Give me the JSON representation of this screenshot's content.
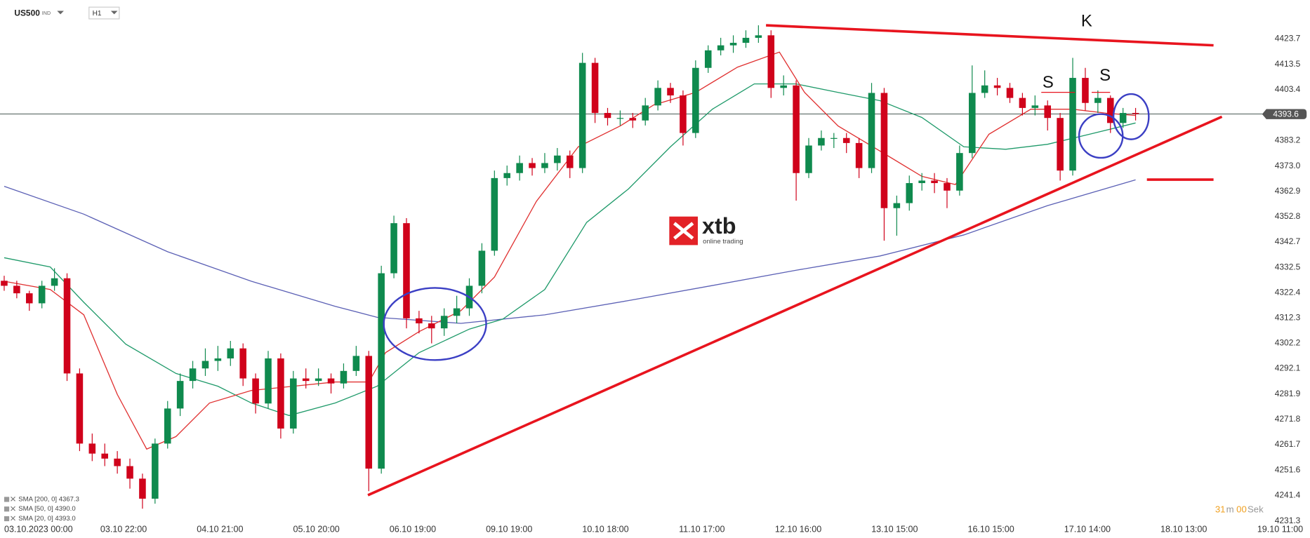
{
  "header": {
    "symbol": "US500",
    "market": "IND",
    "timeframe": "H1"
  },
  "logo": {
    "brand": "xtb",
    "tagline": "online trading"
  },
  "timer": {
    "minutes": "31",
    "minutes_unit": "m",
    "seconds": "00",
    "seconds_unit": "Sek"
  },
  "chart_data": {
    "type": "candlestick",
    "x": [
      0,
      3,
      6,
      9,
      12,
      15,
      18,
      21,
      24,
      27,
      30,
      33,
      36,
      39,
      42,
      45,
      48,
      51,
      54,
      57,
      60,
      63,
      66,
      69,
      72,
      75,
      78,
      81,
      84,
      87,
      90,
      93,
      96,
      99,
      102,
      105,
      108,
      111,
      114,
      117,
      120,
      123,
      126,
      129,
      132,
      135,
      138,
      141,
      144,
      147,
      150,
      153,
      156,
      159,
      162,
      165,
      168,
      171,
      174,
      177,
      180,
      183,
      186,
      189,
      192,
      195,
      198,
      201,
      204,
      207,
      210,
      213,
      216,
      219,
      222,
      225,
      228,
      231,
      234,
      237,
      240,
      243,
      246,
      249,
      252,
      255,
      258,
      261,
      264,
      267,
      270
    ],
    "open": [
      4327,
      4325,
      4322,
      4318,
      4325,
      4328,
      4290,
      4262,
      4258,
      4256,
      4253,
      4248,
      4240,
      4262,
      4276,
      4287,
      4292,
      4295,
      4296,
      4300,
      4288,
      4278,
      4296,
      4268,
      4288,
      4287,
      4288,
      4286,
      4291,
      4297,
      4252,
      4330,
      4350,
      4312,
      4310,
      4308,
      4313,
      4316,
      4325,
      4339,
      4368,
      4370,
      4374,
      4372,
      4374,
      4377,
      4372,
      4414,
      4394,
      4392,
      4392,
      4391,
      4397,
      4404,
      4401,
      4386,
      4412,
      4419,
      4421,
      4422,
      4424,
      4425,
      4404,
      4405,
      4370,
      4381,
      4384,
      4384,
      4382,
      4372,
      4402,
      4356,
      4358,
      4366,
      4367,
      4366,
      4363,
      4378,
      4402,
      4405,
      4404,
      4400,
      4396,
      4397,
      4392,
      4371,
      4408,
      4398,
      4400,
      4390,
      4394
    ],
    "high": [
      4329,
      4327,
      4323,
      4327,
      4332,
      4330,
      4292,
      4266,
      4262,
      4259,
      4256,
      4250,
      4264,
      4279,
      4290,
      4295,
      4300,
      4301,
      4303,
      4302,
      4290,
      4299,
      4298,
      4291,
      4292,
      4292,
      4290,
      4294,
      4301,
      4299,
      4333,
      4353,
      4352,
      4315,
      4313,
      4316,
      4321,
      4328,
      4342,
      4371,
      4373,
      4377,
      4376,
      4378,
      4380,
      4379,
      4418,
      4416,
      4396,
      4395,
      4394,
      4400,
      4407,
      4406,
      4403,
      4415,
      4421,
      4424,
      4425,
      4427,
      4429,
      4427,
      4409,
      4407,
      4384,
      4387,
      4386,
      4386,
      4384,
      4406,
      4404,
      4361,
      4369,
      4370,
      4370,
      4368,
      4381,
      4413,
      4411,
      4408,
      4406,
      4402,
      4401,
      4399,
      4394,
      4416,
      4412,
      4403,
      4401,
      4396,
      4396
    ],
    "low": [
      4323,
      4320,
      4315,
      4316,
      4323,
      4287,
      4259,
      4255,
      4253,
      4250,
      4244,
      4236,
      4238,
      4260,
      4273,
      4284,
      4289,
      4291,
      4293,
      4285,
      4274,
      4276,
      4264,
      4266,
      4284,
      4285,
      4282,
      4284,
      4289,
      4243,
      4250,
      4328,
      4308,
      4306,
      4302,
      4305,
      4310,
      4313,
      4322,
      4337,
      4365,
      4367,
      4369,
      4370,
      4371,
      4368,
      4370,
      4390,
      4389,
      4389,
      4388,
      4389,
      4395,
      4398,
      4381,
      4384,
      4410,
      4417,
      4418,
      4420,
      4422,
      4400,
      4401,
      4359,
      4368,
      4379,
      4380,
      4378,
      4368,
      4370,
      4343,
      4345,
      4355,
      4363,
      4362,
      4356,
      4361,
      4376,
      4400,
      4401,
      4398,
      4393,
      4393,
      4387,
      4367,
      4369,
      4395,
      4394,
      4386,
      4388,
      4391
    ],
    "close": [
      4325,
      4322,
      4318,
      4325,
      4328,
      4290,
      4262,
      4258,
      4256,
      4253,
      4248,
      4240,
      4262,
      4276,
      4287,
      4292,
      4295,
      4296,
      4300,
      4288,
      4278,
      4296,
      4268,
      4288,
      4287,
      4288,
      4286,
      4291,
      4297,
      4252,
      4330,
      4350,
      4312,
      4310,
      4308,
      4313,
      4316,
      4325,
      4339,
      4368,
      4370,
      4374,
      4372,
      4374,
      4377,
      4372,
      4414,
      4394,
      4392,
      4392,
      4391,
      4397,
      4404,
      4401,
      4386,
      4412,
      4419,
      4421,
      4422,
      4424,
      4425,
      4404,
      4405,
      4370,
      4381,
      4384,
      4384,
      4382,
      4372,
      4402,
      4356,
      4358,
      4366,
      4367,
      4366,
      4363,
      4378,
      4402,
      4405,
      4404,
      4400,
      4396,
      4397,
      4392,
      4371,
      4408,
      4398,
      4400,
      4390,
      4394,
      4393.6
    ],
    "up_color": "#0f8a4e",
    "down_color": "#d0021b",
    "series": [
      {
        "name": "SMA [200, 0] 4367.3",
        "color": "#5b60b5",
        "x": [
          0,
          19,
          39,
          59,
          79,
          89,
          109,
          129,
          149,
          169,
          189,
          209,
          229,
          249,
          270
        ],
        "values": [
          4364.7,
          4353.6,
          4338.6,
          4326.8,
          4316.8,
          4312.4,
          4310,
          4313.4,
          4319.1,
          4325.1,
          4331.2,
          4336.9,
          4345.3,
          4357,
          4367.3
        ]
      },
      {
        "name": "SMA [50, 0] 4390.0",
        "color": "#1f9a6a",
        "x": [
          0,
          11,
          19,
          29,
          41,
          51,
          59,
          68,
          79,
          89,
          99,
          111,
          119,
          129,
          139,
          149,
          159,
          169,
          179,
          189,
          199,
          209,
          219,
          229,
          239,
          249,
          259,
          270
        ],
        "values": [
          4336.2,
          4332.5,
          4318.4,
          4301.7,
          4290,
          4284.9,
          4278.2,
          4273.2,
          4278.2,
          4284.9,
          4298.3,
          4307.7,
          4311.7,
          4323.5,
          4350.3,
          4363.7,
          4380.5,
          4395.5,
          4405.6,
          4405.6,
          4402.2,
          4398.9,
          4392.2,
          4380.5,
          4379.5,
          4381.5,
          4385.5,
          4390
        ]
      },
      {
        "name": "SMA [20, 0] 4393.0",
        "color": "#e03030",
        "x": [
          0,
          11,
          19,
          27,
          34,
          41,
          49,
          59,
          69,
          79,
          87,
          91,
          99,
          109,
          117,
          127,
          137,
          147,
          155,
          165,
          175,
          185,
          191,
          199,
          209,
          219,
          227,
          235,
          245,
          255,
          263,
          270
        ],
        "values": [
          4326.8,
          4323.5,
          4313.4,
          4281.6,
          4259.8,
          4264.8,
          4278.2,
          4283.2,
          4284.9,
          4286.6,
          4286.6,
          4298.3,
          4306.7,
          4315.1,
          4328.5,
          4358.7,
          4380.5,
          4388.8,
          4397.2,
          4402.2,
          4412.3,
          4418.3,
          4402.2,
          4388.8,
          4378.8,
          4368.7,
          4365.4,
          4385.5,
          4395.5,
          4395.5,
          4393.9,
          4393
        ]
      }
    ],
    "trendlines": {
      "color": "#e8141e",
      "lines": [
        {
          "x": [
            86.8,
            290.6
          ],
          "y": [
            4241.4,
            4392.5
          ]
        },
        {
          "x": [
            181.8,
            288.6
          ],
          "y": [
            4429,
            4421
          ]
        },
        {
          "x": [
            272.7,
            288.6
          ],
          "y": [
            4367.4,
            4367.4
          ]
        }
      ]
    },
    "annotations": [
      "S",
      "K",
      "S"
    ],
    "last_price": 4393.6,
    "xlim": [
      -1,
      300.6
    ],
    "ylim": [
      4224.3,
      4439.1
    ],
    "yticks": [
      4423.7,
      4413.5,
      4403.4,
      4383.2,
      {
        "value": 4373,
        "label": "4373.0"
      },
      4362.9,
      4352.8,
      4342.7,
      4332.5,
      4322.4,
      4312.3,
      4302.2,
      4292.1,
      4281.9,
      4271.8,
      4261.7,
      4251.6,
      4241.4,
      4231.3
    ],
    "xticks": [
      {
        "value": 0,
        "label": "03.10.2023  00:00"
      },
      {
        "value": 28.5,
        "label": "03.10 22:00"
      },
      {
        "value": 51.5,
        "label": "04.10 21:00"
      },
      {
        "value": 74.5,
        "label": "05.10 20:00"
      },
      {
        "value": 97.5,
        "label": "06.10 19:00"
      },
      {
        "value": 120.5,
        "label": "09.10 19:00"
      },
      {
        "value": 143.5,
        "label": "10.10 18:00"
      },
      {
        "value": 166.5,
        "label": "11.10 17:00"
      },
      {
        "value": 189.5,
        "label": "12.10 16:00"
      },
      {
        "value": 212.5,
        "label": "13.10 15:00"
      },
      {
        "value": 235.5,
        "label": "16.10 15:00"
      },
      {
        "value": 258.5,
        "label": "17.10 14:00"
      },
      {
        "value": 281.5,
        "label": "18.10 13:00"
      },
      {
        "value": 304.5,
        "label": "19.10 11:00"
      }
    ]
  }
}
